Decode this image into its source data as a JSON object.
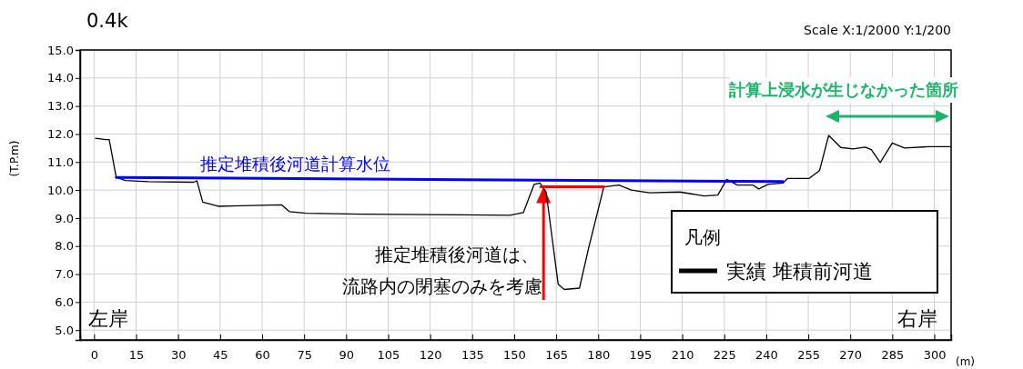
{
  "chart_data": {
    "type": "line",
    "title": "0.4k",
    "subtitle": "Scale X:1/2000 Y:1/200",
    "xlabel": "(m)",
    "ylabel": "(T.P.m)",
    "xlim": [
      -5,
      306
    ],
    "ylim": [
      4.65,
      15
    ],
    "xticks": [
      0,
      15,
      30,
      45,
      60,
      75,
      90,
      105,
      120,
      135,
      150,
      165,
      180,
      195,
      210,
      225,
      240,
      255,
      270,
      285,
      300
    ],
    "yticks": [
      {
        "value": 5,
        "label": "5.0"
      },
      {
        "value": 6,
        "label": "6.0"
      },
      {
        "value": 7,
        "label": "7.0"
      },
      {
        "value": 8,
        "label": "8.0"
      },
      {
        "value": 9,
        "label": "9.0"
      },
      {
        "value": 10,
        "label": "10.0"
      },
      {
        "value": 11,
        "label": "11.0"
      },
      {
        "value": 12,
        "label": "12.0"
      },
      {
        "value": 13,
        "label": "13.0"
      },
      {
        "value": 14,
        "label": "14.0"
      },
      {
        "value": 15,
        "label": "15.0"
      }
    ],
    "grid": true,
    "legend": "bottom right",
    "legend_title": "凡例",
    "series": [
      {
        "name": "実績 堆積前河道",
        "color": "#000000",
        "x": [
          0.5,
          4.1,
          5.4,
          7.9,
          11.2,
          19.3,
          35.6,
          36.7,
          38.8,
          44.3,
          67,
          69.7,
          75.7,
          95.2,
          148.4,
          153.3,
          157.1,
          159.2,
          161.4,
          165.7,
          167.9,
          173.3,
          176.6,
          182,
          187.4,
          191.8,
          198.3,
          209.1,
          217.8,
          222.7,
          225.9,
          229.7,
          235.2,
          237.3,
          240.6,
          246,
          247.6,
          255.2,
          259,
          262.3,
          266.6,
          271,
          275.3,
          277.5,
          280.7,
          285,
          289.4,
          298.1,
          306
        ],
        "values": [
          11.85,
          11.8,
          11.8,
          10.45,
          10.34,
          10.3,
          10.28,
          10.33,
          9.57,
          9.42,
          9.47,
          9.23,
          9.17,
          9.14,
          9.1,
          9.2,
          10.2,
          10.25,
          9.93,
          6.64,
          6.45,
          6.5,
          7.94,
          10.11,
          10.18,
          10.0,
          9.9,
          9.93,
          9.79,
          9.82,
          10.38,
          10.18,
          10.18,
          10.04,
          10.2,
          10.25,
          10.41,
          10.41,
          10.69,
          11.95,
          11.52,
          11.47,
          11.53,
          11.44,
          10.98,
          11.68,
          11.5,
          11.55,
          11.55
        ]
      },
      {
        "type": "line",
        "name": "推定堆積後河道計算水位",
        "color": "#0000ff",
        "x": [
          7.9,
          246
        ],
        "values": [
          10.45,
          10.3
        ]
      },
      {
        "type": "line",
        "color": "#ff0000",
        "x": [
          159.5,
          182
        ],
        "values": [
          10.12,
          10.12
        ]
      }
    ],
    "annotations": [
      "推定堆積後河道は、",
      "流路内の閉塞のみを考慮",
      "計算上浸水が生じなかった箇所",
      "左岸",
      "右岸"
    ]
  }
}
